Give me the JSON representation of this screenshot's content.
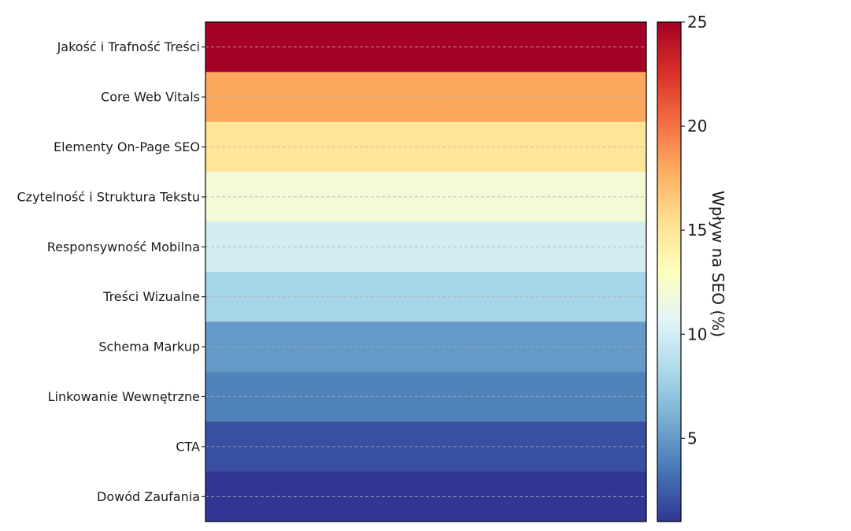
{
  "chart_data": {
    "type": "heatmap",
    "title": "",
    "xlabel": "",
    "ylabel": "",
    "categories": [
      "Jakość i Trafność Treści",
      "Core Web Vitals",
      "Elementy On-Page SEO",
      "Czytelność i Struktura Tekstu",
      "Responsywność Mobilna",
      "Treści Wizualne",
      "Schema Markup",
      "Linkowanie Wewnętrzne",
      "CTA",
      "Dowód Zaufania"
    ],
    "values": [
      25,
      18,
      15,
      12,
      10,
      8,
      5,
      4,
      2,
      1
    ],
    "colorbar": {
      "label": "Wpływ na SEO (%)",
      "range": [
        1,
        25
      ],
      "ticks": [
        5,
        10,
        15,
        20,
        25
      ],
      "tick_labels": [
        "5",
        "10",
        "15",
        "20",
        "25"
      ],
      "colormap": "RdYlBu_r"
    },
    "grid": true,
    "x_ticks": false
  },
  "colors": {
    "axis": "#000000",
    "grid": "#b0b0b0"
  }
}
